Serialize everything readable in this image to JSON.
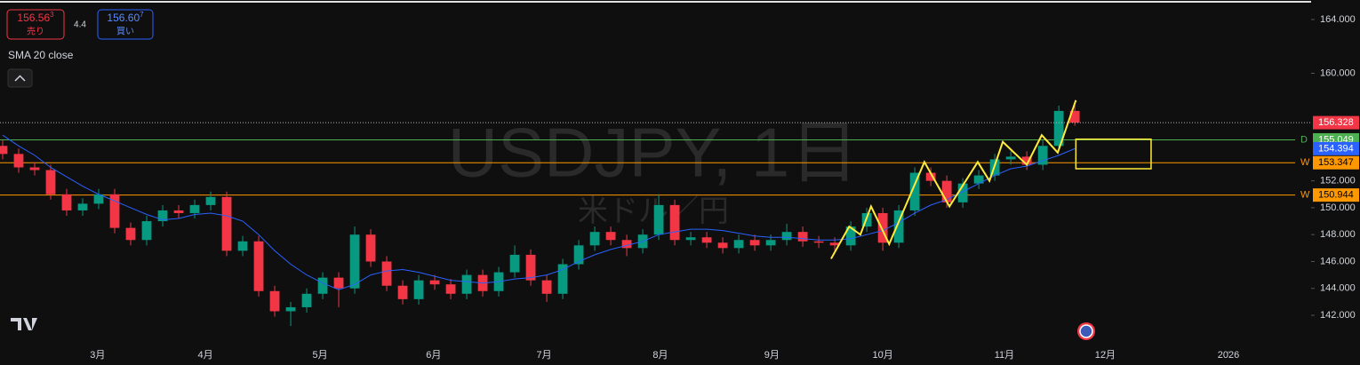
{
  "chart_data": {
    "type": "candlestick",
    "watermark": "USDJPY, 1日",
    "watermark_sub": "米ドル／円",
    "sell": {
      "price": "156.56",
      "pip": "3",
      "label": "売り"
    },
    "spread": "4.4",
    "buy": {
      "price": "156.60",
      "pip": "7",
      "label": "買い"
    },
    "xlim": [
      0,
      245.8
    ],
    "xticks": [
      {
        "value": 18.3,
        "label": "3月"
      },
      {
        "value": 38.5,
        "label": "4月"
      },
      {
        "value": 60,
        "label": "5月"
      },
      {
        "value": 81.3,
        "label": "6月"
      },
      {
        "value": 102,
        "label": "7月"
      },
      {
        "value": 123.8,
        "label": "8月"
      },
      {
        "value": 144.7,
        "label": "9月"
      },
      {
        "value": 165.5,
        "label": "10月"
      },
      {
        "value": 188.3,
        "label": "11月"
      },
      {
        "value": 207.2,
        "label": "12月"
      },
      {
        "value": 230.3,
        "label": "2026"
      }
    ],
    "ylim": [
      139.36,
      165.45
    ],
    "yticks": [
      {
        "value": 142,
        "label": "142.000"
      },
      {
        "value": 144,
        "label": "144.000"
      },
      {
        "value": 146,
        "label": "146.000"
      },
      {
        "value": 148,
        "label": "148.000"
      },
      {
        "value": 150,
        "label": "150.000"
      },
      {
        "value": 152,
        "label": "152.000"
      },
      {
        "value": 160,
        "label": "160.000"
      },
      {
        "value": 164,
        "label": "164.000"
      }
    ],
    "up_color": "#089981",
    "down_color": "#f23645",
    "x": [
      0.5,
      3.5,
      6.5,
      9.5,
      12.5,
      15.5,
      18.5,
      21.5,
      24.5,
      27.5,
      30.5,
      33.5,
      36.5,
      39.5,
      42.5,
      45.5,
      48.5,
      51.5,
      54.5,
      57.5,
      60.5,
      63.5,
      66.5,
      69.5,
      72.5,
      75.5,
      78.5,
      81.5,
      84.5,
      87.5,
      90.5,
      93.5,
      96.5,
      99.5,
      102.5,
      105.5,
      108.5,
      111.5,
      114.5,
      117.5,
      120.5,
      123.5,
      126.5,
      129.5,
      132.5,
      135.5,
      138.5,
      141.5,
      144.5,
      147.5,
      150.5,
      153.5,
      156.5,
      159.5,
      162.5,
      165.5,
      168.5,
      171.5,
      174.5,
      177.5,
      180.5,
      183.5,
      186.5,
      189.5,
      192.5,
      195.5,
      198.5,
      201.5
    ],
    "open": [
      154.6,
      154.0,
      153.0,
      152.8,
      151.0,
      149.8,
      150.3,
      151.0,
      148.5,
      147.6,
      149.0,
      149.8,
      149.6,
      150.2,
      150.8,
      146.8,
      147.5,
      143.8,
      142.3,
      142.6,
      143.6,
      144.8,
      144.0,
      148.0,
      146.0,
      144.2,
      143.2,
      144.6,
      144.3,
      143.6,
      145.0,
      143.8,
      145.2,
      146.5,
      144.6,
      143.6,
      145.8,
      147.2,
      148.2,
      147.6,
      147.0,
      148.0,
      150.2,
      147.6,
      147.8,
      147.4,
      147.0,
      147.6,
      147.2,
      147.6,
      148.2,
      147.5,
      147.4,
      147.2,
      148.6,
      149.6,
      147.4,
      149.8,
      152.6,
      152.0,
      150.4,
      151.8,
      152.4,
      153.6,
      153.8,
      153.2,
      154.6,
      157.2
    ],
    "high": [
      155.0,
      154.4,
      153.4,
      153.2,
      151.4,
      150.7,
      151.4,
      151.4,
      148.9,
      149.4,
      150.2,
      150.2,
      150.6,
      151.2,
      151.2,
      147.9,
      147.9,
      144.2,
      143.0,
      144.0,
      145.2,
      145.2,
      148.6,
      148.4,
      146.4,
      144.6,
      145.0,
      145.0,
      144.7,
      145.4,
      145.4,
      145.6,
      147.2,
      146.9,
      145.0,
      146.2,
      147.6,
      148.6,
      148.6,
      148.0,
      148.4,
      151.0,
      150.6,
      148.2,
      148.2,
      147.8,
      148.0,
      148.0,
      148.0,
      148.8,
      148.6,
      147.9,
      147.8,
      149.0,
      150.0,
      150.0,
      150.2,
      153.0,
      153.0,
      152.4,
      152.2,
      152.8,
      154.0,
      154.2,
      154.2,
      155.0,
      157.6,
      157.7
    ],
    "low": [
      153.6,
      152.6,
      152.4,
      150.6,
      149.4,
      149.4,
      149.9,
      148.1,
      147.2,
      147.2,
      148.6,
      149.2,
      149.2,
      149.8,
      146.4,
      146.4,
      143.4,
      141.9,
      141.2,
      142.2,
      143.2,
      142.6,
      143.6,
      145.6,
      143.8,
      142.8,
      142.8,
      143.9,
      143.2,
      143.2,
      143.4,
      143.4,
      144.8,
      144.2,
      143.0,
      143.2,
      145.4,
      146.8,
      147.2,
      146.4,
      146.6,
      147.6,
      147.2,
      147.2,
      147.0,
      146.6,
      146.6,
      146.8,
      146.8,
      147.2,
      147.1,
      147.0,
      146.8,
      146.8,
      148.2,
      146.8,
      147.0,
      149.4,
      151.6,
      150.0,
      150.0,
      151.4,
      152.0,
      153.2,
      152.8,
      152.8,
      154.2,
      156.1
    ],
    "close": [
      154.0,
      153.0,
      152.8,
      151.0,
      149.8,
      150.3,
      151.0,
      148.5,
      147.6,
      149.0,
      149.8,
      149.6,
      150.2,
      150.8,
      146.8,
      147.5,
      143.8,
      142.3,
      142.6,
      143.6,
      144.8,
      144.0,
      148.0,
      146.0,
      144.2,
      143.2,
      144.6,
      144.3,
      143.6,
      145.0,
      143.8,
      145.2,
      146.5,
      144.6,
      143.6,
      145.8,
      147.2,
      148.2,
      147.6,
      147.0,
      148.0,
      150.2,
      147.6,
      147.8,
      147.4,
      147.0,
      147.6,
      147.2,
      147.6,
      148.2,
      147.5,
      147.4,
      147.2,
      148.6,
      149.6,
      147.4,
      149.8,
      152.6,
      152.0,
      150.4,
      151.8,
      152.4,
      153.6,
      153.8,
      153.2,
      154.6,
      157.2,
      156.328
    ],
    "last_color": "#f23645",
    "series": [
      {
        "name": "SMA 20 close",
        "color": "#2962ff",
        "values": [
          155.4,
          154.6,
          153.9,
          153.0,
          152.3,
          151.6,
          151.0,
          150.5,
          150.0,
          149.5,
          149.1,
          149.2,
          149.5,
          149.6,
          149.4,
          149.0,
          148.0,
          146.8,
          145.8,
          145.0,
          144.4,
          143.9,
          144.3,
          145.0,
          145.3,
          145.4,
          145.2,
          144.9,
          144.6,
          144.5,
          144.4,
          144.5,
          144.7,
          144.8,
          145.0,
          145.4,
          146.0,
          146.5,
          146.9,
          147.2,
          147.5,
          148.0,
          148.2,
          148.4,
          148.4,
          148.3,
          148.1,
          147.9,
          147.8,
          147.8,
          147.7,
          147.6,
          147.6,
          147.7,
          148.0,
          148.3,
          148.9,
          149.6,
          150.2,
          150.6,
          151.2,
          151.8,
          152.4,
          152.9,
          153.1,
          153.5,
          153.9,
          154.394
        ]
      }
    ],
    "levels": [
      {
        "value": 155.049,
        "label": "D",
        "color": "#4caf50"
      },
      {
        "value": 153.347,
        "label": "W",
        "color": "#ff9800"
      },
      {
        "value": 150.944,
        "label": "W",
        "color": "#ff9800"
      }
    ],
    "zigzag": {
      "color": "#ffeb3b",
      "x": [
        155.8,
        159.2,
        161.3,
        163.3,
        166.7,
        173.3,
        178,
        183.3,
        185.5,
        188,
        192.5,
        195.3,
        198.3,
        201.7
      ],
      "values": [
        146.2,
        148.6,
        148.0,
        150.1,
        147.3,
        153.4,
        150.1,
        153.4,
        152.0,
        154.9,
        153.2,
        155.4,
        154.1,
        158.0
      ]
    },
    "box": {
      "color": "#ffeb3b",
      "x": [
        201.7,
        215.8
      ],
      "y": [
        155.1,
        152.9
      ]
    }
  }
}
